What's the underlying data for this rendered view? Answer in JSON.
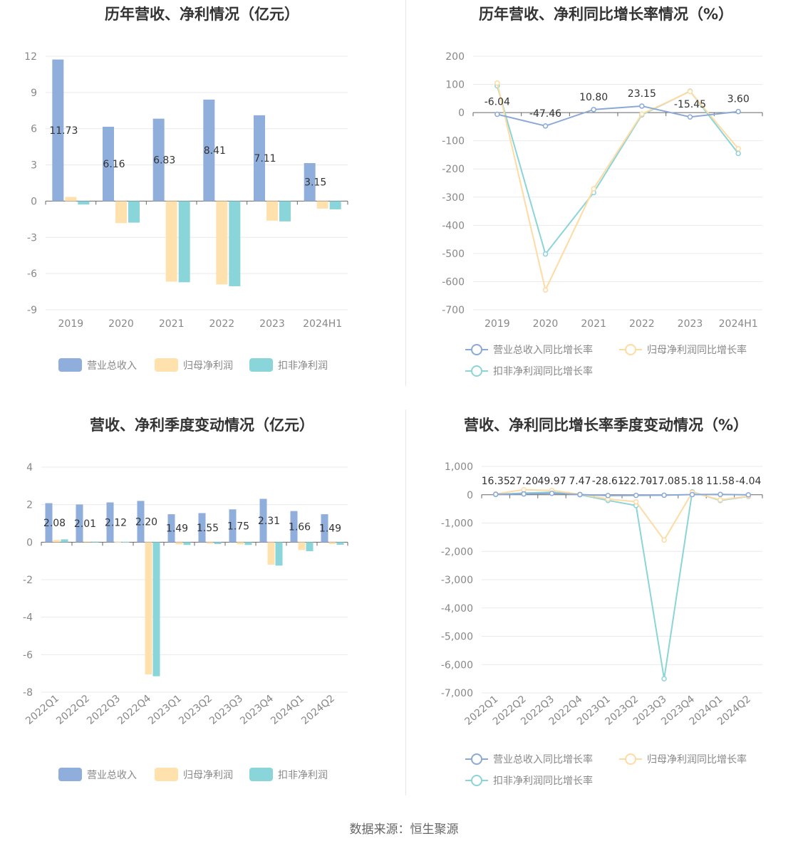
{
  "footer": "数据来源：恒生聚源",
  "colors": {
    "revenue": "#90aedb",
    "net_profit": "#ffe1ad",
    "deducted_profit": "#89d5da",
    "revenue_line": "#8ba9d6",
    "net_line": "#ffdba4",
    "deducted_line": "#8bd4d8",
    "grid": "#e9e9e9",
    "axis": "#666666",
    "title": "#333333"
  },
  "chart_data": [
    {
      "type": "bar",
      "title": "历年营收、净利情况（亿元）",
      "categories": [
        "2019",
        "2020",
        "2021",
        "2022",
        "2023",
        "2024H1"
      ],
      "ylim": [
        -9,
        12
      ],
      "yticks": [
        12,
        9,
        6,
        3,
        0,
        -3,
        -6,
        -9
      ],
      "grid": true,
      "legend_position": "bottom",
      "label_series": 0,
      "series": [
        {
          "name": "营业总收入",
          "color": "#90aedb",
          "values": [
            11.73,
            6.16,
            6.83,
            8.41,
            7.11,
            3.15
          ],
          "labels": [
            "11.73",
            "6.16",
            "6.83",
            "8.41",
            "7.11",
            "3.15"
          ]
        },
        {
          "name": "归母净利润",
          "color": "#ffe1ad",
          "values": [
            0.35,
            -1.82,
            -6.67,
            -6.9,
            -1.62,
            -0.62
          ]
        },
        {
          "name": "扣非净利润",
          "color": "#89d5da",
          "values": [
            -0.28,
            -1.78,
            -6.72,
            -7.05,
            -1.68,
            -0.68
          ]
        }
      ]
    },
    {
      "type": "line",
      "title": "历年营收、净利同比增长率情况（%）",
      "categories": [
        "2019",
        "2020",
        "2021",
        "2022",
        "2023",
        "2024H1"
      ],
      "ylim": [
        -700,
        200
      ],
      "yticks": [
        200,
        100,
        0,
        -100,
        -200,
        -300,
        -400,
        -500,
        -600,
        -700
      ],
      "grid": true,
      "legend_position": "bottom",
      "label_series": 0,
      "series": [
        {
          "name": "营业总收入同比增长率",
          "color": "#8ba9d6",
          "values": [
            -6.04,
            -47.46,
            10.8,
            23.15,
            -15.45,
            3.6
          ],
          "labels": [
            "-6.04",
            "-47.46",
            "10.80",
            "23.15",
            "-15.45",
            "3.60"
          ]
        },
        {
          "name": "归母净利润同比增长率",
          "color": "#ffdba4",
          "values": [
            105,
            -630,
            -270,
            -5,
            75,
            -128
          ]
        },
        {
          "name": "扣非净利润同比增长率",
          "color": "#8bd4d8",
          "values": [
            95,
            -502,
            -284,
            -8,
            76,
            -145
          ]
        }
      ]
    },
    {
      "type": "bar",
      "title": "营收、净利季度变动情况（亿元）",
      "categories": [
        "2022Q1",
        "2022Q2",
        "2022Q3",
        "2022Q4",
        "2023Q1",
        "2023Q2",
        "2023Q3",
        "2023Q4",
        "2024Q1",
        "2024Q2"
      ],
      "ylim": [
        -8,
        4
      ],
      "yticks": [
        4,
        2,
        0,
        -2,
        -4,
        -6,
        -8
      ],
      "grid": true,
      "legend_position": "bottom",
      "label_series": 0,
      "series": [
        {
          "name": "营业总收入",
          "color": "#90aedb",
          "values": [
            2.08,
            2.01,
            2.12,
            2.2,
            1.49,
            1.55,
            1.75,
            2.31,
            1.66,
            1.49
          ],
          "labels": [
            "2.08",
            "2.01",
            "2.12",
            "2.20",
            "1.49",
            "1.55",
            "1.75",
            "2.31",
            "1.66",
            "1.49"
          ]
        },
        {
          "name": "归母净利润",
          "color": "#ffe1ad",
          "values": [
            0.12,
            0.04,
            0.02,
            -7.05,
            -0.12,
            -0.08,
            -0.12,
            -1.2,
            -0.42,
            -0.1
          ]
        },
        {
          "name": "扣非净利润",
          "color": "#89d5da",
          "values": [
            0.15,
            0.03,
            0.01,
            -7.15,
            -0.15,
            -0.1,
            -0.15,
            -1.25,
            -0.48,
            -0.14
          ]
        }
      ]
    },
    {
      "type": "line",
      "title": "营收、净利同比增长率季度变动情况（%）",
      "categories": [
        "2022Q1",
        "2022Q2",
        "2022Q3",
        "2022Q4",
        "2023Q1",
        "2023Q2",
        "2023Q3",
        "2023Q4",
        "2024Q1",
        "2024Q2"
      ],
      "ylim": [
        -7000,
        1000
      ],
      "yticks": [
        1000,
        0,
        -1000,
        -2000,
        -3000,
        -4000,
        -5000,
        -6000,
        -7000
      ],
      "ytick_labels": [
        "1,000",
        "0",
        "-1,000",
        "-2,000",
        "-3,000",
        "-4,000",
        "-5,000",
        "-6,000",
        "-7,000"
      ],
      "grid": true,
      "legend_position": "bottom",
      "label_series": 0,
      "series": [
        {
          "name": "营业总收入同比增长率",
          "color": "#8ba9d6",
          "values": [
            16.35,
            27.2,
            49.97,
            7.47,
            -28.61,
            -22.7,
            -17.08,
            5.18,
            11.58,
            -4.04
          ],
          "labels": [
            "16.35",
            "27.20",
            "49.97",
            "7.47",
            "-28.61",
            "-22.70",
            "-17.08",
            "5.18",
            "11.58",
            "-4.04"
          ]
        },
        {
          "name": "归母净利润同比增长率",
          "color": "#ffdba4",
          "values": [
            30,
            180,
            150,
            20,
            -150,
            -250,
            -1600,
            80,
            -180,
            -50
          ]
        },
        {
          "name": "扣非净利润同比增长率",
          "color": "#8bd4d8",
          "values": [
            10,
            60,
            90,
            0,
            -200,
            -380,
            -6500,
            100,
            -200,
            -60
          ]
        }
      ]
    }
  ]
}
